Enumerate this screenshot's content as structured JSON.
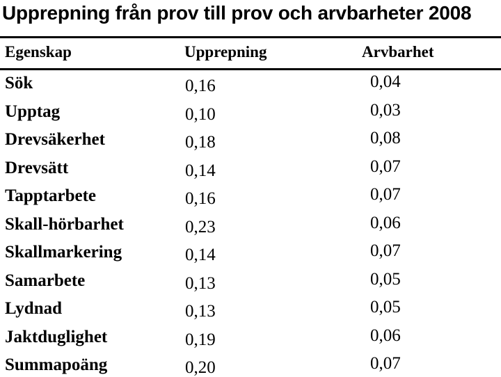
{
  "title": "Upprepning från prov till prov och arvbarheter 2008",
  "table": {
    "columns": [
      "Egenskap",
      "Upprepning",
      "Arvbarhet"
    ],
    "rows": [
      {
        "egenskap": "Sök",
        "upprepning": "0,16",
        "arvbarhet": "0,04"
      },
      {
        "egenskap": "Upptag",
        "upprepning": "0,10",
        "arvbarhet": "0,03"
      },
      {
        "egenskap": "Drevsäkerhet",
        "upprepning": "0,18",
        "arvbarhet": "0,08"
      },
      {
        "egenskap": "Drevsätt",
        "upprepning": "0,14",
        "arvbarhet": "0,07"
      },
      {
        "egenskap": "Tapptarbete",
        "upprepning": "0,16",
        "arvbarhet": "0,07"
      },
      {
        "egenskap": "Skall-hörbarhet",
        "upprepning": "0,23",
        "arvbarhet": "0,06"
      },
      {
        "egenskap": "Skallmarkering",
        "upprepning": "0,14",
        "arvbarhet": "0,07"
      },
      {
        "egenskap": "Samarbete",
        "upprepning": "0,13",
        "arvbarhet": "0,05"
      },
      {
        "egenskap": "Lydnad",
        "upprepning": "0,13",
        "arvbarhet": "0,05"
      },
      {
        "egenskap": "Jaktduglighet",
        "upprepning": "0,19",
        "arvbarhet": "0,06"
      },
      {
        "egenskap": "Summapoäng",
        "upprepning": "0,20",
        "arvbarhet": "0,07"
      }
    ]
  },
  "colors": {
    "background": "#ffffff",
    "text": "#000000",
    "rule": "#000000"
  }
}
